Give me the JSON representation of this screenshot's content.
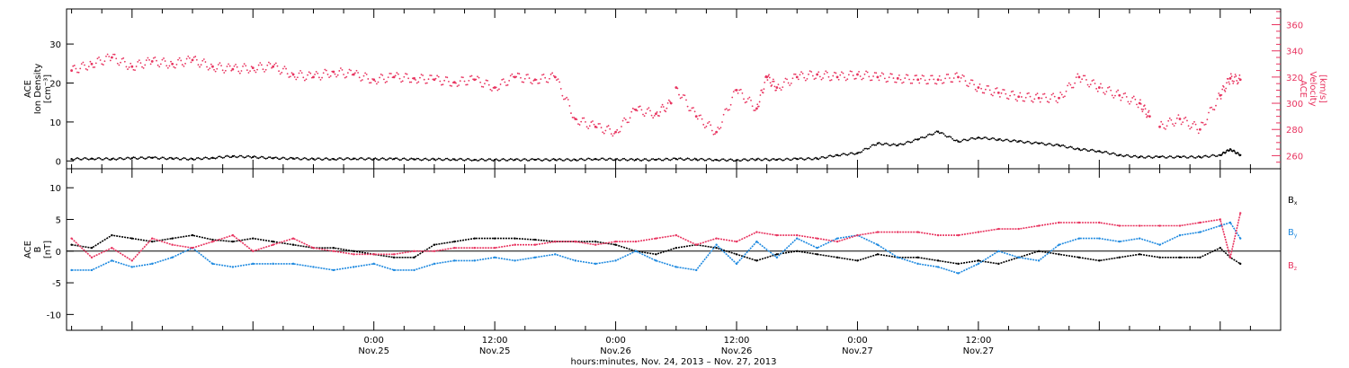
{
  "colors": {
    "black": "#000000",
    "pink": "#e8335f",
    "blue": "#1f8ae0"
  },
  "chart_data": [
    {
      "type": "scatter",
      "panel": "top",
      "ylabel_lines": [
        "ACE",
        "Ion Density",
        "[cm⁻³]"
      ],
      "ylabel2_lines": [
        "ACE",
        "Velocity",
        "[km/s]"
      ],
      "ylim": [
        -2,
        39
      ],
      "yticks": [
        0,
        10,
        20,
        30
      ],
      "y2lim": [
        250,
        372
      ],
      "y2ticks": [
        260,
        280,
        300,
        320,
        340,
        360
      ],
      "series": [
        {
          "axis": "left",
          "color": "pink",
          "note_values_in": "velocity (km/s) read against right axis",
          "x": [
            -6,
            -4,
            -2,
            0,
            2,
            4,
            6,
            8,
            10,
            12,
            14,
            16,
            18,
            20,
            22,
            24,
            26,
            28,
            30,
            32,
            34,
            36,
            38,
            40,
            42,
            44,
            46,
            48,
            50,
            52,
            53.5,
            54,
            56,
            58,
            60,
            62,
            63,
            64,
            66,
            68,
            70,
            72,
            74,
            76,
            78,
            80,
            82,
            84,
            86,
            88,
            90,
            92,
            94,
            96,
            98,
            100,
            101,
            102,
            104,
            106,
            108,
            109,
            110
          ],
          "y": [
            325,
            330,
            335,
            328,
            332,
            330,
            333,
            328,
            326,
            327,
            328,
            322,
            320,
            324,
            322,
            318,
            320,
            319,
            318,
            316,
            318,
            312,
            320,
            318,
            320,
            288,
            282,
            278,
            295,
            292,
            300,
            312,
            290,
            278,
            310,
            296,
            320,
            312,
            320,
            322,
            320,
            322,
            320,
            319,
            318,
            318,
            320,
            312,
            308,
            305,
            304,
            304,
            320,
            312,
            306,
            300,
            290,
            282,
            288,
            280,
            306,
            319,
            318
          ]
        },
        {
          "axis": "left",
          "color": "black",
          "x": [
            -6,
            -4,
            -2,
            0,
            2,
            4,
            6,
            8,
            10,
            12,
            14,
            16,
            18,
            20,
            22,
            24,
            26,
            28,
            30,
            32,
            34,
            36,
            38,
            40,
            42,
            44,
            46,
            48,
            50,
            52,
            54,
            56,
            58,
            60,
            62,
            64,
            66,
            68,
            70,
            72,
            74,
            76,
            78,
            80,
            82,
            84,
            86,
            88,
            90,
            92,
            94,
            96,
            98,
            100,
            102,
            104,
            106,
            108,
            109,
            110
          ],
          "y": [
            0.5,
            0.6,
            0.5,
            0.7,
            0.8,
            0.6,
            0.5,
            0.8,
            1.2,
            1.0,
            0.7,
            0.6,
            0.5,
            0.5,
            0.6,
            0.5,
            0.5,
            0.4,
            0.4,
            0.4,
            0.3,
            0.3,
            0.3,
            0.3,
            0.3,
            0.3,
            0.5,
            0.4,
            0.3,
            0.3,
            0.5,
            0.4,
            0.3,
            0.2,
            0.4,
            0.3,
            0.5,
            0.6,
            1.5,
            2.0,
            4.5,
            4.0,
            5.5,
            7.5,
            5.0,
            6.0,
            5.5,
            5.0,
            4.5,
            4.0,
            3.0,
            2.5,
            1.5,
            1.0,
            1.0,
            1.0,
            1.0,
            1.5,
            3.0,
            1.5
          ]
        }
      ]
    },
    {
      "type": "line",
      "panel": "bottom",
      "ylabel_lines": [
        "ACE",
        "B",
        "[nT]"
      ],
      "ylim": [
        -12.5,
        13
      ],
      "yticks": [
        -10,
        -5,
        0,
        5,
        10
      ],
      "series": [
        {
          "name": "Bx",
          "color": "black",
          "x": [
            -6,
            -4,
            -2,
            0,
            2,
            4,
            6,
            8,
            10,
            12,
            14,
            16,
            18,
            20,
            22,
            24,
            26,
            28,
            30,
            32,
            34,
            36,
            38,
            40,
            42,
            44,
            46,
            48,
            50,
            52,
            54,
            56,
            58,
            60,
            62,
            64,
            66,
            68,
            70,
            72,
            74,
            76,
            78,
            80,
            82,
            84,
            86,
            88,
            90,
            92,
            94,
            96,
            98,
            100,
            102,
            104,
            106,
            108,
            109,
            110
          ],
          "y": [
            1.0,
            0.5,
            2.5,
            2.0,
            1.5,
            2.0,
            2.5,
            1.8,
            1.5,
            2.0,
            1.5,
            1.0,
            0.5,
            0.5,
            0.0,
            -0.5,
            -1.0,
            -1.0,
            1.0,
            1.5,
            2.0,
            2.0,
            2.0,
            1.8,
            1.5,
            1.5,
            1.5,
            1.0,
            0.0,
            -0.5,
            0.5,
            1.0,
            0.5,
            -0.5,
            -1.5,
            -0.5,
            0.0,
            -0.5,
            -1.0,
            -1.5,
            -0.5,
            -1.0,
            -1.0,
            -1.5,
            -2.0,
            -1.5,
            -2.0,
            -1.0,
            0.0,
            -0.5,
            -1.0,
            -1.5,
            -1.0,
            -0.5,
            -1.0,
            -1.0,
            -1.0,
            0.5,
            -1.0,
            -2.0
          ]
        },
        {
          "name": "By",
          "color": "blue",
          "x": [
            -6,
            -4,
            -2,
            0,
            2,
            4,
            6,
            8,
            10,
            12,
            14,
            16,
            18,
            20,
            22,
            24,
            26,
            28,
            30,
            32,
            34,
            36,
            38,
            40,
            42,
            44,
            46,
            48,
            50,
            52,
            54,
            56,
            58,
            60,
            62,
            64,
            66,
            68,
            70,
            72,
            74,
            76,
            78,
            80,
            82,
            84,
            86,
            88,
            90,
            92,
            94,
            96,
            98,
            100,
            102,
            104,
            106,
            108,
            109,
            110
          ],
          "y": [
            -3.0,
            -3.0,
            -1.5,
            -2.5,
            -2.0,
            -1.0,
            0.5,
            -2.0,
            -2.5,
            -2.0,
            -2.0,
            -2.0,
            -2.5,
            -3.0,
            -2.5,
            -2.0,
            -3.0,
            -3.0,
            -2.0,
            -1.5,
            -1.5,
            -1.0,
            -1.5,
            -1.0,
            -0.5,
            -1.5,
            -2.0,
            -1.5,
            0.0,
            -1.5,
            -2.5,
            -3.0,
            1.0,
            -2.0,
            1.5,
            -1.0,
            2.0,
            0.5,
            2.0,
            2.5,
            1.0,
            -1.0,
            -2.0,
            -2.5,
            -3.5,
            -2.0,
            0.0,
            -1.0,
            -1.5,
            1.0,
            2.0,
            2.0,
            1.5,
            2.0,
            1.0,
            2.5,
            3.0,
            4.0,
            4.5,
            2.0
          ]
        },
        {
          "name": "Bz",
          "color": "pink",
          "x": [
            -6,
            -4,
            -2,
            0,
            2,
            4,
            6,
            8,
            10,
            12,
            14,
            16,
            18,
            20,
            22,
            24,
            26,
            28,
            30,
            32,
            34,
            36,
            38,
            40,
            42,
            44,
            46,
            48,
            50,
            52,
            54,
            56,
            58,
            60,
            62,
            64,
            66,
            68,
            70,
            72,
            74,
            76,
            78,
            80,
            82,
            84,
            86,
            88,
            90,
            92,
            94,
            96,
            98,
            100,
            102,
            104,
            106,
            108,
            109,
            110
          ],
          "y": [
            2.0,
            -1.0,
            0.5,
            -1.5,
            2.0,
            1.0,
            0.5,
            1.5,
            2.5,
            0.0,
            1.0,
            2.0,
            0.5,
            0.0,
            -0.5,
            -0.5,
            -0.5,
            0.0,
            0.0,
            0.5,
            0.5,
            0.5,
            1.0,
            1.0,
            1.5,
            1.5,
            1.0,
            1.5,
            1.5,
            2.0,
            2.5,
            1.0,
            2.0,
            1.5,
            3.0,
            2.5,
            2.5,
            2.0,
            1.5,
            2.5,
            3.0,
            3.0,
            3.0,
            2.5,
            2.5,
            3.0,
            3.5,
            3.5,
            4.0,
            4.5,
            4.5,
            4.5,
            4.0,
            4.0,
            4.0,
            4.0,
            4.5,
            5.0,
            -1.0,
            6.0
          ]
        }
      ]
    }
  ],
  "xaxis": {
    "x_range_hours_from_nov24_0000": [
      -6.5,
      114
    ],
    "tick_labels": [
      {
        "x": 24,
        "time": "0:00",
        "date": "Nov.25"
      },
      {
        "x": 36,
        "time": "12:00",
        "date": "Nov.25"
      },
      {
        "x": 48,
        "time": "0:00",
        "date": "Nov.26"
      },
      {
        "x": 60,
        "time": "12:00",
        "date": "Nov.26"
      },
      {
        "x": 72,
        "time": "0:00",
        "date": "Nov.27"
      },
      {
        "x": 84,
        "time": "12:00",
        "date": "Nov.27"
      }
    ],
    "label": "hours:minutes, Nov. 24, 2013 – Nov. 27, 2013"
  },
  "legend": {
    "bx": "B",
    "bx_sub": "x",
    "by": "B",
    "by_sub": "y",
    "bz": "B",
    "bz_sub": "z"
  }
}
